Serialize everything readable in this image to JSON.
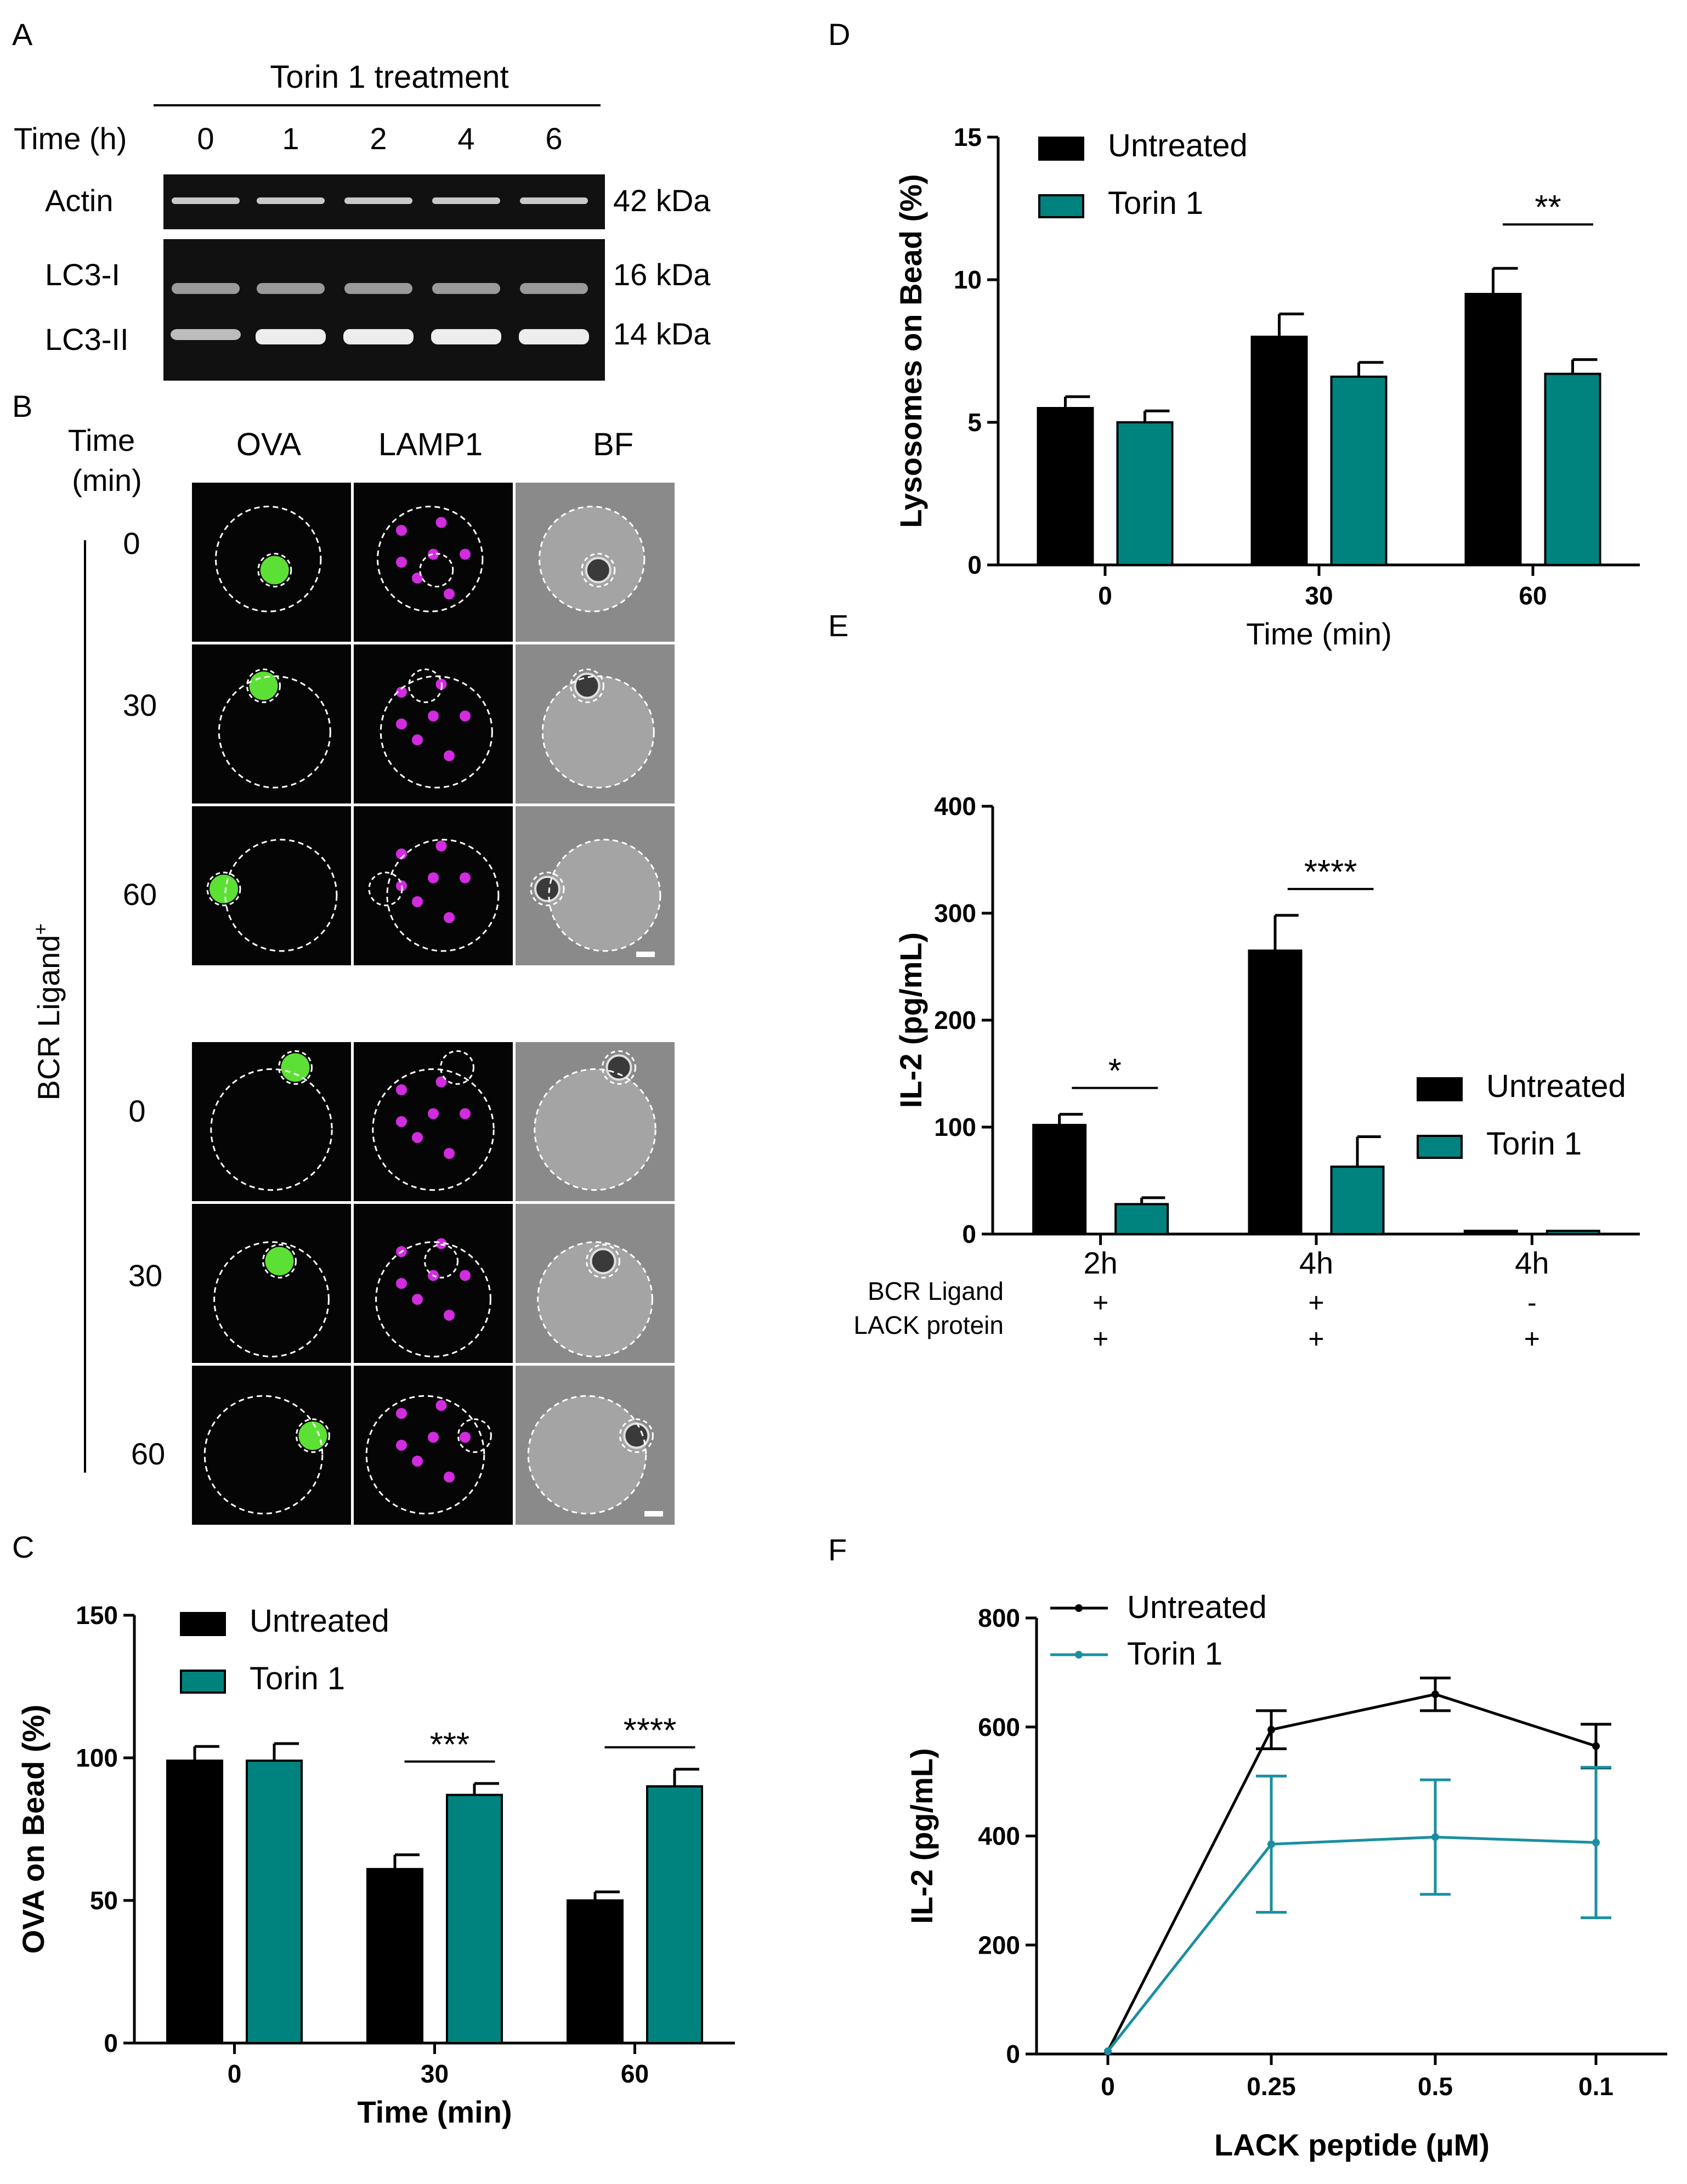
{
  "panel_letters": {
    "a": "A",
    "b": "B",
    "c": "C",
    "d": "D",
    "e": "E",
    "f": "F"
  },
  "colors": {
    "untreated": "#000000",
    "torin": "#00837f",
    "torin_line": "#1a8fa0",
    "ova_label": "#22b522",
    "lamp1_label": "#9b3fb5"
  },
  "panel_a": {
    "title": "Torin 1 treatment",
    "time_label": "Time (h)",
    "timepoints": [
      "0",
      "1",
      "2",
      "4",
      "6"
    ],
    "rows": [
      {
        "name": "Actin",
        "size": "42 kDa"
      },
      {
        "name": "LC3-I",
        "size": "16 kDa"
      },
      {
        "name": "LC3-II",
        "size": "14 kDa"
      }
    ]
  },
  "panel_b": {
    "time_header_1": "Time",
    "time_header_2": "(min)",
    "channels": [
      "OVA",
      "LAMP1",
      "BF"
    ],
    "group_label": "BCR Ligand",
    "group_sup": "+",
    "times": [
      "0",
      "30",
      "60",
      "0",
      "30",
      "60"
    ]
  },
  "chart_data": [
    {
      "panel": "C",
      "type": "bar",
      "xlabel": "Time (min)",
      "ylabel": "OVA on Bead (%)",
      "categories": [
        "0",
        "30",
        "60"
      ],
      "ylim": [
        0,
        150
      ],
      "yticks": [
        "0",
        "50",
        "100",
        "150"
      ],
      "series": [
        {
          "name": "Untreated",
          "values": [
            99,
            61,
            50
          ],
          "errors": [
            5,
            5,
            3
          ]
        },
        {
          "name": "Torin 1",
          "values": [
            99,
            87,
            90
          ],
          "errors": [
            6,
            4,
            6
          ]
        }
      ],
      "significance": [
        {
          "category": "30",
          "label": "***"
        },
        {
          "category": "60",
          "label": "****"
        }
      ],
      "legend": "top-left"
    },
    {
      "panel": "D",
      "type": "bar",
      "xlabel": "Time (min)",
      "ylabel": "Lysosomes on Bead (%)",
      "categories": [
        "0",
        "30",
        "60"
      ],
      "ylim": [
        0,
        15
      ],
      "yticks": [
        "0",
        "5",
        "10",
        "15"
      ],
      "series": [
        {
          "name": "Untreated",
          "values": [
            5.5,
            8.0,
            9.5
          ],
          "errors": [
            0.4,
            0.8,
            0.9
          ]
        },
        {
          "name": "Torin 1",
          "values": [
            5.0,
            6.6,
            6.7
          ],
          "errors": [
            0.4,
            0.5,
            0.5
          ]
        }
      ],
      "significance": [
        {
          "category": "60",
          "label": "**"
        }
      ],
      "legend": "top-left"
    },
    {
      "panel": "E",
      "type": "bar",
      "xlabel": "",
      "ylabel": "IL-2 (pg/mL)",
      "categories": [
        "2h",
        "4h",
        "4h"
      ],
      "row_labels": [
        "BCR Ligand",
        "LACK protein"
      ],
      "bcr_ligand": [
        "+",
        "+",
        "-"
      ],
      "lack_protein": [
        "+",
        "+",
        "+"
      ],
      "ylim": [
        0,
        400
      ],
      "yticks": [
        "0",
        "100",
        "200",
        "300",
        "400"
      ],
      "series": [
        {
          "name": "Untreated",
          "values": [
            102,
            265,
            3
          ],
          "errors": [
            10,
            33,
            0
          ]
        },
        {
          "name": "Torin 1",
          "values": [
            28,
            63,
            3
          ],
          "errors": [
            6,
            28,
            0
          ]
        }
      ],
      "significance": [
        {
          "category": 0,
          "label": "*"
        },
        {
          "category": 1,
          "label": "****"
        }
      ],
      "legend": "right"
    },
    {
      "panel": "F",
      "type": "line",
      "xlabel": "LACK peptide (µM)",
      "ylabel": "IL-2 (pg/mL)",
      "x": [
        "0",
        "0.25",
        "0.5",
        "0.1"
      ],
      "ylim": [
        0,
        800
      ],
      "yticks": [
        "0",
        "200",
        "400",
        "600",
        "800"
      ],
      "series": [
        {
          "name": "Untreated",
          "values": [
            5,
            595,
            660,
            565
          ],
          "errors": [
            0,
            35,
            30,
            40
          ]
        },
        {
          "name": "Torin 1",
          "values": [
            5,
            385,
            398,
            388
          ],
          "errors": [
            0,
            125,
            105,
            138
          ]
        }
      ],
      "legend": "top-left"
    }
  ]
}
